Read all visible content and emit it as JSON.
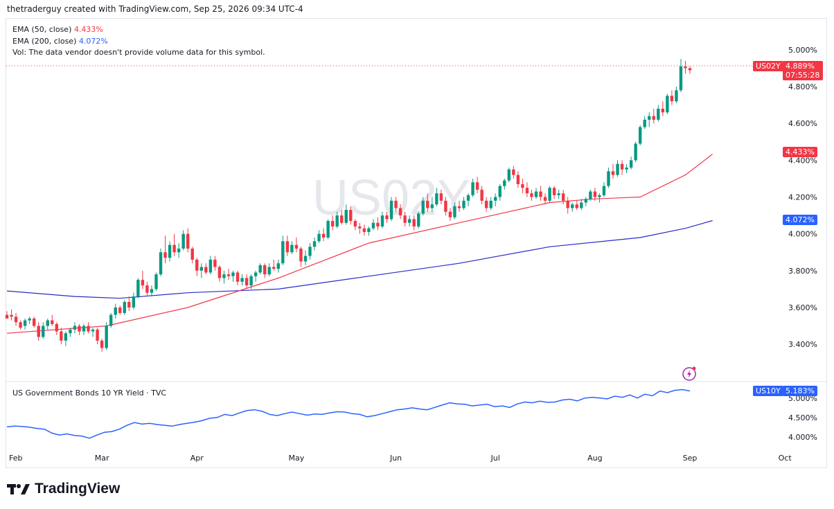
{
  "header": {
    "text": "thetraderguy created with TradingView.com, Sep 25, 2026 09:34 UTC-4"
  },
  "legend": {
    "ema50_label": "EMA (50, close)",
    "ema50_value": "4.433%",
    "ema200_label": "EMA (200, close)",
    "ema200_value": "4.072%",
    "vol_text": "Vol: The data vendor doesn't provide volume data for this symbol."
  },
  "watermark": "US02Y",
  "price_tag": {
    "symbol": "US02Y",
    "value": "4.889%",
    "countdown": "07:55:28"
  },
  "ema_tags": {
    "ema50": "4.433%",
    "ema200": "4.072%"
  },
  "lower_pane": {
    "title": "US Government Bonds 10 YR Yield · TVC",
    "symbol": "US10Y",
    "value": "5.183%"
  },
  "footer": {
    "brand": "TradingView"
  },
  "colors": {
    "up": "#089981",
    "down": "#f23645",
    "ema50": "#f23645",
    "ema200": "#2929c8",
    "line": "#2962ff"
  },
  "chart_data": [
    {
      "type": "candlestick",
      "symbol": "US02Y",
      "y_tick_labels": [
        "5.000%",
        "4.800%",
        "4.600%",
        "4.400%",
        "4.200%",
        "4.000%",
        "3.800%",
        "3.600%",
        "3.400%"
      ],
      "ylim": [
        3.22,
        5.12
      ],
      "x_tick_labels": [
        "Feb",
        "Mar",
        "Apr",
        "May",
        "Jun",
        "Jul",
        "Aug",
        "Sep",
        "Oct"
      ],
      "candles": [
        [
          3.56,
          3.58,
          3.55,
          3.54
        ],
        [
          3.56,
          3.59,
          3.53,
          3.55
        ],
        [
          3.55,
          3.57,
          3.5,
          3.52
        ],
        [
          3.52,
          3.53,
          3.48,
          3.49
        ],
        [
          3.5,
          3.54,
          3.48,
          3.53
        ],
        [
          3.53,
          3.55,
          3.51,
          3.54
        ],
        [
          3.54,
          3.55,
          3.49,
          3.5
        ],
        [
          3.5,
          3.52,
          3.42,
          3.44
        ],
        [
          3.44,
          3.52,
          3.43,
          3.5
        ],
        [
          3.5,
          3.54,
          3.48,
          3.53
        ],
        [
          3.53,
          3.56,
          3.5,
          3.51
        ],
        [
          3.51,
          3.52,
          3.45,
          3.47
        ],
        [
          3.47,
          3.49,
          3.4,
          3.42
        ],
        [
          3.42,
          3.47,
          3.39,
          3.46
        ],
        [
          3.46,
          3.49,
          3.44,
          3.48
        ],
        [
          3.48,
          3.52,
          3.46,
          3.5
        ],
        [
          3.5,
          3.51,
          3.45,
          3.47
        ],
        [
          3.47,
          3.51,
          3.45,
          3.5
        ],
        [
          3.5,
          3.52,
          3.46,
          3.47
        ],
        [
          3.47,
          3.49,
          3.44,
          3.48
        ],
        [
          3.48,
          3.49,
          3.4,
          3.42
        ],
        [
          3.42,
          3.43,
          3.36,
          3.38
        ],
        [
          3.38,
          3.52,
          3.37,
          3.5
        ],
        [
          3.5,
          3.57,
          3.49,
          3.56
        ],
        [
          3.56,
          3.62,
          3.54,
          3.6
        ],
        [
          3.6,
          3.61,
          3.56,
          3.57
        ],
        [
          3.57,
          3.64,
          3.56,
          3.63
        ],
        [
          3.63,
          3.66,
          3.58,
          3.6
        ],
        [
          3.6,
          3.68,
          3.59,
          3.66
        ],
        [
          3.66,
          3.76,
          3.65,
          3.75
        ],
        [
          3.75,
          3.8,
          3.7,
          3.72
        ],
        [
          3.72,
          3.74,
          3.66,
          3.68
        ],
        [
          3.68,
          3.72,
          3.66,
          3.7
        ],
        [
          3.7,
          3.79,
          3.69,
          3.78
        ],
        [
          3.78,
          3.92,
          3.77,
          3.9
        ],
        [
          3.9,
          3.99,
          3.84,
          3.87
        ],
        [
          3.87,
          3.96,
          3.85,
          3.94
        ],
        [
          3.94,
          4.0,
          3.88,
          3.9
        ],
        [
          3.9,
          3.95,
          3.87,
          3.92
        ],
        [
          3.92,
          4.02,
          3.91,
          4.0
        ],
        [
          4.0,
          4.03,
          3.9,
          3.92
        ],
        [
          3.92,
          3.93,
          3.84,
          3.86
        ],
        [
          3.86,
          3.87,
          3.77,
          3.8
        ],
        [
          3.8,
          3.84,
          3.76,
          3.82
        ],
        [
          3.82,
          3.84,
          3.78,
          3.79
        ],
        [
          3.79,
          3.88,
          3.78,
          3.86
        ],
        [
          3.86,
          3.88,
          3.8,
          3.82
        ],
        [
          3.82,
          3.83,
          3.74,
          3.76
        ],
        [
          3.76,
          3.8,
          3.73,
          3.78
        ],
        [
          3.78,
          3.81,
          3.75,
          3.77
        ],
        [
          3.77,
          3.8,
          3.74,
          3.79
        ],
        [
          3.79,
          3.8,
          3.72,
          3.74
        ],
        [
          3.74,
          3.78,
          3.72,
          3.76
        ],
        [
          3.76,
          3.78,
          3.7,
          3.72
        ],
        [
          3.72,
          3.78,
          3.7,
          3.77
        ],
        [
          3.77,
          3.8,
          3.74,
          3.79
        ],
        [
          3.79,
          3.84,
          3.78,
          3.83
        ],
        [
          3.83,
          3.84,
          3.76,
          3.78
        ],
        [
          3.78,
          3.84,
          3.77,
          3.82
        ],
        [
          3.82,
          3.86,
          3.8,
          3.81
        ],
        [
          3.81,
          3.86,
          3.79,
          3.84
        ],
        [
          3.84,
          3.99,
          3.83,
          3.96
        ],
        [
          3.96,
          3.99,
          3.88,
          3.9
        ],
        [
          3.9,
          3.96,
          3.89,
          3.94
        ],
        [
          3.94,
          3.98,
          3.9,
          3.92
        ],
        [
          3.92,
          3.93,
          3.82,
          3.85
        ],
        [
          3.85,
          3.91,
          3.83,
          3.88
        ],
        [
          3.88,
          3.95,
          3.86,
          3.93
        ],
        [
          3.93,
          3.98,
          3.91,
          3.96
        ],
        [
          3.96,
          4.02,
          3.95,
          4.0
        ],
        [
          4.0,
          4.03,
          3.96,
          3.98
        ],
        [
          3.98,
          4.08,
          3.97,
          4.07
        ],
        [
          4.07,
          4.1,
          4.02,
          4.04
        ],
        [
          4.04,
          4.12,
          4.03,
          4.1
        ],
        [
          4.1,
          4.13,
          4.05,
          4.06
        ],
        [
          4.06,
          4.16,
          4.05,
          4.13
        ],
        [
          4.13,
          4.15,
          4.05,
          4.07
        ],
        [
          4.07,
          4.08,
          4.02,
          4.04
        ],
        [
          4.04,
          4.06,
          4.0,
          4.03
        ],
        [
          4.03,
          4.05,
          3.99,
          4.01
        ],
        [
          4.01,
          4.04,
          3.99,
          4.03
        ],
        [
          4.03,
          4.08,
          4.02,
          4.06
        ],
        [
          4.06,
          4.09,
          4.02,
          4.04
        ],
        [
          4.04,
          4.12,
          4.03,
          4.1
        ],
        [
          4.1,
          4.12,
          4.06,
          4.08
        ],
        [
          4.08,
          4.2,
          4.07,
          4.18
        ],
        [
          4.18,
          4.2,
          4.12,
          4.14
        ],
        [
          4.14,
          4.16,
          4.08,
          4.1
        ],
        [
          4.1,
          4.12,
          4.04,
          4.06
        ],
        [
          4.06,
          4.1,
          4.04,
          4.08
        ],
        [
          4.08,
          4.1,
          4.02,
          4.04
        ],
        [
          4.04,
          4.12,
          4.03,
          4.11
        ],
        [
          4.11,
          4.2,
          4.1,
          4.18
        ],
        [
          4.18,
          4.22,
          4.12,
          4.14
        ],
        [
          4.14,
          4.2,
          4.12,
          4.16
        ],
        [
          4.16,
          4.25,
          4.15,
          4.22
        ],
        [
          4.22,
          4.24,
          4.16,
          4.18
        ],
        [
          4.18,
          4.2,
          4.1,
          4.12
        ],
        [
          4.12,
          4.14,
          4.07,
          4.09
        ],
        [
          4.09,
          4.17,
          4.08,
          4.15
        ],
        [
          4.15,
          4.18,
          4.12,
          4.14
        ],
        [
          4.14,
          4.2,
          4.13,
          4.18
        ],
        [
          4.18,
          4.22,
          4.15,
          4.21
        ],
        [
          4.21,
          4.3,
          4.2,
          4.28
        ],
        [
          4.28,
          4.31,
          4.22,
          4.24
        ],
        [
          4.24,
          4.26,
          4.16,
          4.18
        ],
        [
          4.18,
          4.2,
          4.12,
          4.14
        ],
        [
          4.14,
          4.2,
          4.13,
          4.18
        ],
        [
          4.18,
          4.22,
          4.15,
          4.2
        ],
        [
          4.2,
          4.27,
          4.18,
          4.26
        ],
        [
          4.26,
          4.3,
          4.24,
          4.29
        ],
        [
          4.29,
          4.36,
          4.28,
          4.35
        ],
        [
          4.35,
          4.37,
          4.3,
          4.32
        ],
        [
          4.32,
          4.34,
          4.25,
          4.27
        ],
        [
          4.27,
          4.3,
          4.22,
          4.25
        ],
        [
          4.25,
          4.28,
          4.2,
          4.22
        ],
        [
          4.22,
          4.24,
          4.18,
          4.2
        ],
        [
          4.2,
          4.25,
          4.19,
          4.23
        ],
        [
          4.23,
          4.26,
          4.18,
          4.2
        ],
        [
          4.2,
          4.22,
          4.16,
          4.18
        ],
        [
          4.18,
          4.26,
          4.17,
          4.25
        ],
        [
          4.25,
          4.26,
          4.19,
          4.21
        ],
        [
          4.21,
          4.24,
          4.19,
          4.22
        ],
        [
          4.22,
          4.24,
          4.16,
          4.18
        ],
        [
          4.18,
          4.2,
          4.11,
          4.14
        ],
        [
          4.14,
          4.17,
          4.12,
          4.16
        ],
        [
          4.16,
          4.18,
          4.13,
          4.14
        ],
        [
          4.14,
          4.19,
          4.13,
          4.17
        ],
        [
          4.17,
          4.2,
          4.15,
          4.19
        ],
        [
          4.19,
          4.24,
          4.18,
          4.23
        ],
        [
          4.23,
          4.25,
          4.18,
          4.2
        ],
        [
          4.2,
          4.22,
          4.17,
          4.21
        ],
        [
          4.21,
          4.28,
          4.2,
          4.26
        ],
        [
          4.26,
          4.36,
          4.25,
          4.34
        ],
        [
          4.34,
          4.38,
          4.3,
          4.32
        ],
        [
          4.32,
          4.4,
          4.31,
          4.38
        ],
        [
          4.38,
          4.4,
          4.32,
          4.35
        ],
        [
          4.35,
          4.38,
          4.33,
          4.36
        ],
        [
          4.36,
          4.42,
          4.35,
          4.4
        ],
        [
          4.4,
          4.5,
          4.39,
          4.49
        ],
        [
          4.49,
          4.59,
          4.48,
          4.58
        ],
        [
          4.58,
          4.64,
          4.57,
          4.62
        ],
        [
          4.62,
          4.66,
          4.58,
          4.64
        ],
        [
          4.64,
          4.68,
          4.6,
          4.62
        ],
        [
          4.62,
          4.7,
          4.61,
          4.68
        ],
        [
          4.68,
          4.72,
          4.64,
          4.66
        ],
        [
          4.66,
          4.76,
          4.65,
          4.75
        ],
        [
          4.75,
          4.78,
          4.7,
          4.72
        ],
        [
          4.72,
          4.8,
          4.71,
          4.78
        ],
        [
          4.78,
          4.95,
          4.77,
          4.91
        ],
        [
          4.91,
          4.94,
          4.87,
          4.9
        ],
        [
          4.9,
          4.91,
          4.87,
          4.889
        ]
      ],
      "ema50": [
        [
          0,
          3.46
        ],
        [
          22,
          3.5
        ],
        [
          40,
          3.6
        ],
        [
          60,
          3.76
        ],
        [
          80,
          3.95
        ],
        [
          100,
          4.06
        ],
        [
          120,
          4.17
        ],
        [
          130,
          4.19
        ],
        [
          140,
          4.2
        ],
        [
          150,
          4.32
        ],
        [
          156,
          4.433
        ]
      ],
      "ema200": [
        [
          0,
          3.69
        ],
        [
          15,
          3.66
        ],
        [
          25,
          3.65
        ],
        [
          40,
          3.68
        ],
        [
          60,
          3.7
        ],
        [
          80,
          3.77
        ],
        [
          100,
          3.84
        ],
        [
          120,
          3.93
        ],
        [
          140,
          3.98
        ],
        [
          150,
          4.03
        ],
        [
          156,
          4.072
        ]
      ],
      "last_value": 4.889
    },
    {
      "type": "line",
      "symbol": "US10Y",
      "title": "US Government Bonds 10 YR Yield · TVC",
      "y_tick_labels": [
        "5.000%",
        "4.500%",
        "4.000%"
      ],
      "ylim": [
        3.75,
        5.3
      ],
      "values": [
        4.26,
        4.28,
        4.27,
        4.25,
        4.22,
        4.2,
        4.1,
        4.05,
        4.08,
        4.04,
        4.02,
        3.97,
        4.05,
        4.12,
        4.14,
        4.2,
        4.3,
        4.37,
        4.33,
        4.35,
        4.32,
        4.3,
        4.28,
        4.32,
        4.35,
        4.38,
        4.42,
        4.48,
        4.5,
        4.58,
        4.55,
        4.62,
        4.68,
        4.7,
        4.66,
        4.58,
        4.55,
        4.6,
        4.64,
        4.6,
        4.56,
        4.59,
        4.58,
        4.62,
        4.65,
        4.64,
        4.6,
        4.58,
        4.52,
        4.55,
        4.6,
        4.65,
        4.7,
        4.72,
        4.75,
        4.72,
        4.7,
        4.76,
        4.82,
        4.88,
        4.85,
        4.84,
        4.8,
        4.82,
        4.84,
        4.78,
        4.8,
        4.76,
        4.85,
        4.9,
        4.88,
        4.92,
        4.89,
        4.9,
        4.95,
        4.97,
        4.93,
        5.0,
        5.02,
        5.0,
        4.98,
        5.05,
        5.02,
        5.08,
        5.0,
        5.1,
        5.06,
        5.18,
        5.14,
        5.2,
        5.22,
        5.183
      ]
    }
  ]
}
